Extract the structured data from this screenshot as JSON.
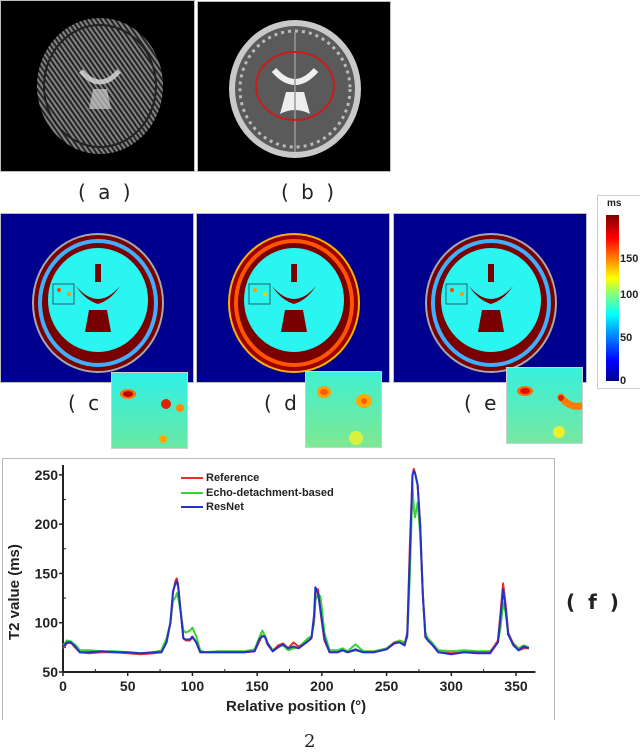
{
  "panels": {
    "a": {
      "label": "( a )",
      "description": "undersampled T2-weighted brain image with stripe artifacts"
    },
    "b": {
      "label": "( b )",
      "description": "reference T2-weighted brain image with red circular ROI"
    },
    "c": {
      "label": "( c )",
      "description": "T2 map - Reference"
    },
    "d": {
      "label": "( d )",
      "description": "T2 map - Echo-detachment-based"
    },
    "e": {
      "label": "( e )",
      "description": "T2 map - ResNet"
    },
    "f": {
      "label": "( f )"
    }
  },
  "colorbar": {
    "unit": "ms",
    "ticks": [
      "150",
      "100",
      "50",
      "0"
    ],
    "range": [
      0,
      190
    ],
    "colormap": "jet"
  },
  "footer": {
    "page_fragment": "2"
  },
  "colors": {
    "reference": "#e8312a",
    "echo": "#35d42f",
    "resnet": "#2233cc",
    "map_bg": "#00008f"
  },
  "chart_data": {
    "type": "line",
    "title": "",
    "xlabel": "Relative position (°)",
    "ylabel": "T2 value (ms)",
    "xlim": [
      0,
      365
    ],
    "ylim": [
      50,
      260
    ],
    "xticks": [
      "0",
      "50",
      "100",
      "150",
      "200",
      "250",
      "300",
      "350"
    ],
    "yticks": [
      "50",
      "100",
      "150",
      "200",
      "250"
    ],
    "legend": {
      "position": "top-left-inside",
      "entries": [
        "Reference",
        "Echo-detachment-based",
        "ResNet"
      ]
    },
    "grid": false,
    "x": [
      0,
      3,
      6,
      10,
      13,
      20,
      30,
      40,
      50,
      60,
      70,
      76,
      80,
      83,
      85,
      87,
      88,
      89,
      91,
      93,
      95,
      98,
      100,
      103,
      106,
      110,
      120,
      130,
      140,
      148,
      152,
      154,
      156,
      158,
      162,
      166,
      170,
      174,
      178,
      182,
      186,
      190,
      192,
      194,
      195,
      197,
      199,
      202,
      206,
      212,
      216,
      220,
      226,
      232,
      240,
      250,
      256,
      260,
      264,
      266,
      268,
      270,
      271,
      272,
      274,
      276,
      278,
      280,
      282,
      285,
      290,
      300,
      310,
      320,
      330,
      336,
      338,
      340,
      342,
      344,
      348,
      352,
      356,
      360
    ],
    "series": [
      {
        "name": "Reference",
        "color": "#e8312a",
        "values": [
          74,
          79,
          80,
          74,
          70,
          69,
          70,
          70,
          69,
          68,
          69,
          70,
          80,
          100,
          130,
          143,
          145,
          138,
          110,
          84,
          82,
          82,
          85,
          80,
          70,
          70,
          70,
          70,
          70,
          71,
          82,
          87,
          86,
          78,
          71,
          77,
          79,
          74,
          80,
          76,
          78,
          82,
          84,
          105,
          130,
          134,
          110,
          82,
          70,
          70,
          72,
          70,
          72,
          70,
          70,
          73,
          80,
          80,
          78,
          90,
          180,
          250,
          256,
          252,
          240,
          200,
          130,
          85,
          82,
          78,
          70,
          69,
          70,
          70,
          70,
          82,
          110,
          140,
          118,
          90,
          78,
          72,
          74,
          74
        ]
      },
      {
        "name": "Echo-detachment-based",
        "color": "#35d42f",
        "values": [
          77,
          82,
          81,
          77,
          72,
          72,
          71,
          71,
          70,
          69,
          70,
          72,
          84,
          100,
          122,
          126,
          130,
          125,
          110,
          92,
          90,
          92,
          95,
          86,
          72,
          70,
          71,
          71,
          71,
          73,
          86,
          92,
          87,
          80,
          72,
          76,
          77,
          72,
          74,
          75,
          80,
          85,
          86,
          100,
          122,
          130,
          126,
          90,
          72,
          72,
          74,
          71,
          78,
          71,
          71,
          74,
          80,
          82,
          80,
          85,
          150,
          240,
          216,
          207,
          222,
          190,
          130,
          90,
          84,
          80,
          72,
          71,
          72,
          71,
          71,
          80,
          95,
          120,
          110,
          88,
          79,
          74,
          77,
          75
        ]
      },
      {
        "name": "ResNet",
        "color": "#2233cc",
        "values": [
          76,
          80,
          80,
          75,
          70,
          70,
          71,
          70,
          70,
          69,
          70,
          70,
          80,
          100,
          132,
          140,
          142,
          136,
          110,
          84,
          83,
          83,
          86,
          80,
          70,
          70,
          70,
          70,
          70,
          71,
          84,
          86,
          86,
          79,
          71,
          75,
          78,
          74,
          76,
          74,
          78,
          82,
          85,
          108,
          136,
          130,
          112,
          84,
          70,
          70,
          72,
          70,
          73,
          70,
          70,
          73,
          79,
          80,
          77,
          88,
          170,
          250,
          254,
          252,
          240,
          198,
          128,
          86,
          82,
          78,
          70,
          68,
          70,
          69,
          69,
          80,
          105,
          134,
          114,
          88,
          77,
          72,
          76,
          74
        ]
      }
    ]
  }
}
